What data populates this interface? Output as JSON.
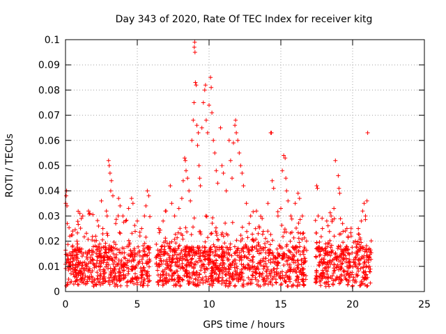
{
  "chart_data": {
    "type": "scatter",
    "title": "Day 343 of 2020, Rate Of TEC Index for receiver kitg",
    "xlabel": "GPS time / hours",
    "ylabel": "ROTI / TECUs",
    "xlim": [
      0,
      25
    ],
    "ylim": [
      0,
      0.1
    ],
    "grid": true,
    "marker": "+",
    "color": "#ff0000",
    "x_ticks": [
      {
        "value": 0,
        "label": "0"
      },
      {
        "value": 5,
        "label": "5"
      },
      {
        "value": 10,
        "label": "10"
      },
      {
        "value": 15,
        "label": "15"
      },
      {
        "value": 20,
        "label": "20"
      },
      {
        "value": 25,
        "label": "25"
      }
    ],
    "y_ticks": [
      {
        "value": 0,
        "label": "0"
      },
      {
        "value": 0.01,
        "label": "0.01"
      },
      {
        "value": 0.02,
        "label": "0.02"
      },
      {
        "value": 0.03,
        "label": "0.03"
      },
      {
        "value": 0.04,
        "label": "0.04"
      },
      {
        "value": 0.05,
        "label": "0.05"
      },
      {
        "value": 0.06,
        "label": "0.06"
      },
      {
        "value": 0.07,
        "label": "0.07"
      },
      {
        "value": 0.08,
        "label": "0.08"
      },
      {
        "value": 0.09,
        "label": "0.09"
      },
      {
        "value": 0.1,
        "label": "0.1"
      }
    ],
    "data_segments": [
      [
        0.0,
        5.9
      ],
      [
        6.3,
        16.8
      ],
      [
        17.4,
        21.3
      ]
    ],
    "series": [
      {
        "name": "ROTI",
        "points": [
          [
            0.02,
            0.035
          ],
          [
            0.05,
            0.038
          ],
          [
            0.08,
            0.04
          ],
          [
            0.1,
            0.034
          ],
          [
            0.12,
            0.027
          ],
          [
            0.3,
            0.022
          ],
          [
            0.5,
            0.024
          ],
          [
            0.8,
            0.02
          ],
          [
            1.0,
            0.031
          ],
          [
            1.1,
            0.029
          ],
          [
            1.2,
            0.03
          ],
          [
            1.6,
            0.032
          ],
          [
            1.7,
            0.031
          ],
          [
            2.1,
            0.022
          ],
          [
            2.3,
            0.026
          ],
          [
            2.6,
            0.025
          ],
          [
            2.5,
            0.036
          ],
          [
            2.9,
            0.03
          ],
          [
            3.0,
            0.052
          ],
          [
            3.05,
            0.05
          ],
          [
            3.1,
            0.047
          ],
          [
            3.15,
            0.04
          ],
          [
            3.2,
            0.044
          ],
          [
            3.3,
            0.038
          ],
          [
            3.5,
            0.027
          ],
          [
            3.7,
            0.037
          ],
          [
            3.8,
            0.034
          ],
          [
            4.0,
            0.03
          ],
          [
            4.2,
            0.028
          ],
          [
            4.4,
            0.033
          ],
          [
            4.6,
            0.037
          ],
          [
            4.7,
            0.035
          ],
          [
            5.0,
            0.028
          ],
          [
            5.3,
            0.025
          ],
          [
            5.5,
            0.03
          ],
          [
            5.6,
            0.034
          ],
          [
            5.7,
            0.04
          ],
          [
            5.8,
            0.038
          ],
          [
            6.5,
            0.025
          ],
          [
            6.8,
            0.028
          ],
          [
            7.0,
            0.032
          ],
          [
            7.3,
            0.042
          ],
          [
            7.4,
            0.035
          ],
          [
            7.6,
            0.03
          ],
          [
            7.9,
            0.033
          ],
          [
            8.1,
            0.037
          ],
          [
            8.2,
            0.044
          ],
          [
            8.3,
            0.053
          ],
          [
            8.35,
            0.052
          ],
          [
            8.4,
            0.048
          ],
          [
            8.5,
            0.045
          ],
          [
            8.6,
            0.04
          ],
          [
            8.7,
            0.036
          ],
          [
            8.8,
            0.06
          ],
          [
            8.9,
            0.068
          ],
          [
            8.95,
            0.075
          ],
          [
            8.97,
            0.097
          ],
          [
            9.0,
            0.099
          ],
          [
            9.02,
            0.095
          ],
          [
            9.05,
            0.083
          ],
          [
            9.1,
            0.082
          ],
          [
            9.15,
            0.066
          ],
          [
            9.2,
            0.058
          ],
          [
            9.25,
            0.063
          ],
          [
            9.3,
            0.05
          ],
          [
            9.35,
            0.045
          ],
          [
            9.4,
            0.042
          ],
          [
            9.5,
            0.065
          ],
          [
            9.6,
            0.075
          ],
          [
            9.7,
            0.08
          ],
          [
            9.75,
            0.082
          ],
          [
            9.8,
            0.068
          ],
          [
            9.9,
            0.063
          ],
          [
            10.0,
            0.074
          ],
          [
            10.1,
            0.085
          ],
          [
            10.15,
            0.081
          ],
          [
            10.2,
            0.071
          ],
          [
            10.3,
            0.06
          ],
          [
            10.4,
            0.055
          ],
          [
            10.5,
            0.048
          ],
          [
            10.6,
            0.043
          ],
          [
            10.8,
            0.065
          ],
          [
            10.9,
            0.05
          ],
          [
            11.0,
            0.047
          ],
          [
            11.2,
            0.04
          ],
          [
            11.4,
            0.06
          ],
          [
            11.5,
            0.052
          ],
          [
            11.6,
            0.045
          ],
          [
            11.7,
            0.059
          ],
          [
            11.8,
            0.066
          ],
          [
            11.85,
            0.068
          ],
          [
            11.9,
            0.063
          ],
          [
            12.0,
            0.06
          ],
          [
            12.1,
            0.055
          ],
          [
            12.2,
            0.05
          ],
          [
            12.3,
            0.047
          ],
          [
            12.4,
            0.042
          ],
          [
            12.6,
            0.035
          ],
          [
            12.9,
            0.03
          ],
          [
            13.3,
            0.032
          ],
          [
            13.7,
            0.029
          ],
          [
            14.1,
            0.035
          ],
          [
            14.3,
            0.063
          ],
          [
            14.35,
            0.063
          ],
          [
            14.4,
            0.044
          ],
          [
            14.5,
            0.041
          ],
          [
            14.8,
            0.03
          ],
          [
            15.0,
            0.033
          ],
          [
            15.1,
            0.048
          ],
          [
            15.2,
            0.054
          ],
          [
            15.3,
            0.053
          ],
          [
            15.35,
            0.045
          ],
          [
            15.4,
            0.04
          ],
          [
            15.5,
            0.036
          ],
          [
            15.7,
            0.03
          ],
          [
            16.0,
            0.035
          ],
          [
            16.2,
            0.039
          ],
          [
            16.3,
            0.037
          ],
          [
            16.5,
            0.03
          ],
          [
            17.5,
            0.042
          ],
          [
            17.55,
            0.041
          ],
          [
            17.6,
            0.03
          ],
          [
            17.9,
            0.025
          ],
          [
            18.2,
            0.028
          ],
          [
            18.5,
            0.03
          ],
          [
            18.7,
            0.033
          ],
          [
            18.8,
            0.052
          ],
          [
            19.0,
            0.046
          ],
          [
            19.05,
            0.041
          ],
          [
            19.1,
            0.039
          ],
          [
            19.3,
            0.027
          ],
          [
            19.6,
            0.025
          ],
          [
            19.9,
            0.022
          ],
          [
            20.2,
            0.02
          ],
          [
            20.4,
            0.025
          ],
          [
            20.6,
            0.028
          ],
          [
            20.7,
            0.032
          ],
          [
            20.8,
            0.035
          ],
          [
            20.9,
            0.03
          ],
          [
            21.0,
            0.036
          ],
          [
            21.05,
            0.063
          ]
        ]
      }
    ]
  }
}
